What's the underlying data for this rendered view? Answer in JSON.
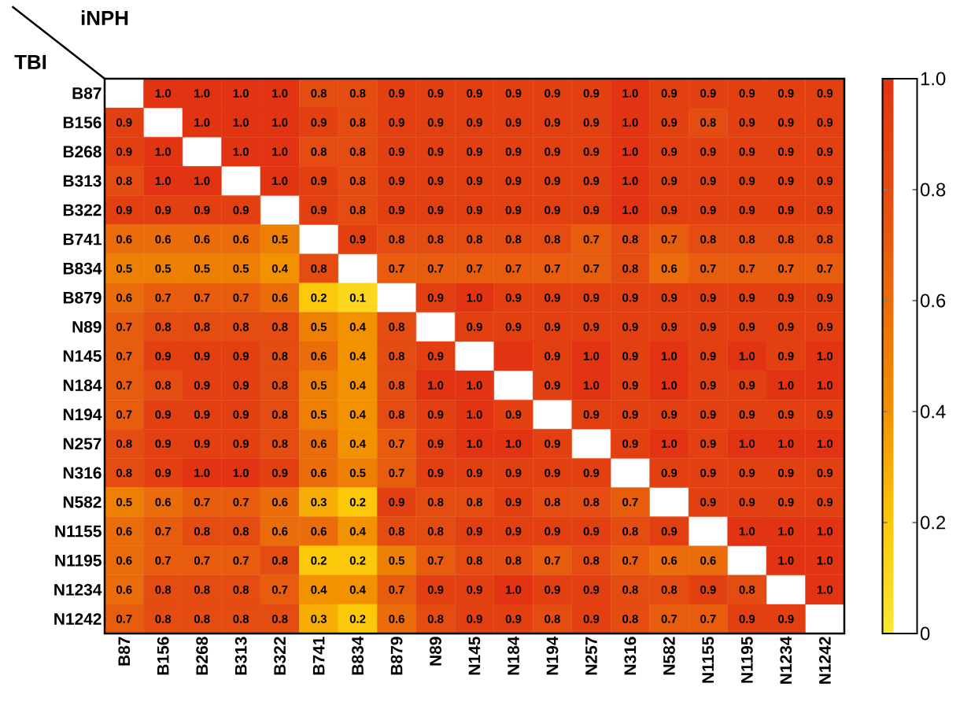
{
  "chart_data": {
    "type": "heatmap",
    "xlabel": "iNPH",
    "ylabel": "TBI",
    "categories": [
      "B87",
      "B156",
      "B268",
      "B313",
      "B322",
      "B741",
      "B834",
      "B879",
      "N89",
      "N145",
      "N184",
      "N194",
      "N257",
      "N316",
      "N582",
      "N1155",
      "N1195",
      "N1234",
      "N1242"
    ],
    "y_categories": [
      "B87",
      "B156",
      "B268",
      "B313",
      "B322",
      "B741",
      "B834",
      "B879",
      "N89",
      "N145",
      "N184",
      "N194",
      "N257",
      "N316",
      "N582",
      "N1155",
      "N1195",
      "N1234",
      "N1242"
    ],
    "cells": [
      [
        null,
        1.0,
        1.0,
        1.0,
        1.0,
        0.8,
        0.8,
        0.9,
        0.9,
        0.9,
        0.9,
        0.9,
        0.9,
        1.0,
        0.9,
        0.9,
        0.9,
        0.9,
        0.9
      ],
      [
        0.9,
        null,
        1.0,
        1.0,
        1.0,
        0.9,
        0.8,
        0.9,
        0.9,
        0.9,
        0.9,
        0.9,
        0.9,
        1.0,
        0.9,
        0.8,
        0.9,
        0.9,
        0.9
      ],
      [
        0.9,
        1.0,
        null,
        1.0,
        1.0,
        0.8,
        0.8,
        0.9,
        0.9,
        0.9,
        0.9,
        0.9,
        0.9,
        1.0,
        0.9,
        0.9,
        0.9,
        0.9,
        0.9
      ],
      [
        0.8,
        1.0,
        1.0,
        null,
        1.0,
        0.9,
        0.8,
        0.9,
        0.9,
        0.9,
        0.9,
        0.9,
        0.9,
        1.0,
        0.9,
        0.9,
        0.9,
        0.9,
        0.9
      ],
      [
        0.9,
        0.9,
        0.9,
        0.9,
        null,
        0.9,
        0.8,
        0.9,
        0.9,
        0.9,
        0.9,
        0.9,
        0.9,
        1.0,
        0.9,
        0.9,
        0.9,
        0.9,
        0.9
      ],
      [
        0.6,
        0.6,
        0.6,
        0.6,
        0.5,
        null,
        0.9,
        0.8,
        0.8,
        0.8,
        0.8,
        0.8,
        0.7,
        0.8,
        0.7,
        0.8,
        0.8,
        0.8,
        0.8
      ],
      [
        0.5,
        0.5,
        0.5,
        0.5,
        0.4,
        0.8,
        null,
        0.7,
        0.7,
        0.7,
        0.7,
        0.7,
        0.7,
        0.8,
        0.6,
        0.7,
        0.7,
        0.7,
        0.7
      ],
      [
        0.6,
        0.7,
        0.7,
        0.7,
        0.6,
        0.2,
        0.1,
        null,
        0.9,
        1.0,
        0.9,
        0.9,
        0.9,
        0.9,
        0.9,
        0.9,
        0.9,
        0.9,
        0.9
      ],
      [
        0.7,
        0.8,
        0.8,
        0.8,
        0.8,
        0.5,
        0.4,
        0.8,
        null,
        0.9,
        0.9,
        0.9,
        0.9,
        0.9,
        0.9,
        0.9,
        0.9,
        0.9,
        0.9
      ],
      [
        0.7,
        0.9,
        0.9,
        0.9,
        0.8,
        0.6,
        0.4,
        0.8,
        0.9,
        null,
        1.0,
        0.9,
        1.0,
        0.9,
        1.0,
        0.9,
        1.0,
        0.9,
        1.0
      ],
      [
        0.7,
        0.8,
        0.9,
        0.9,
        0.8,
        0.5,
        0.4,
        0.8,
        1.0,
        1.0,
        null,
        0.9,
        1.0,
        0.9,
        1.0,
        0.9,
        0.9,
        1.0,
        1.0
      ],
      [
        0.7,
        0.9,
        0.9,
        0.9,
        0.8,
        0.5,
        0.4,
        0.8,
        0.9,
        1.0,
        0.9,
        null,
        0.9,
        0.9,
        0.9,
        0.9,
        0.9,
        0.9,
        0.9
      ],
      [
        0.8,
        0.9,
        0.9,
        0.9,
        0.8,
        0.6,
        0.4,
        0.7,
        0.9,
        1.0,
        1.0,
        0.9,
        null,
        0.9,
        1.0,
        0.9,
        1.0,
        1.0,
        1.0
      ],
      [
        0.8,
        0.9,
        1.0,
        1.0,
        0.9,
        0.6,
        0.5,
        0.7,
        0.9,
        0.9,
        0.9,
        0.9,
        0.9,
        null,
        0.9,
        0.9,
        0.9,
        0.9,
        0.9
      ],
      [
        0.5,
        0.6,
        0.7,
        0.7,
        0.6,
        0.3,
        0.2,
        0.9,
        0.8,
        0.8,
        0.9,
        0.8,
        0.8,
        0.7,
        null,
        0.9,
        0.9,
        0.9,
        0.9
      ],
      [
        0.6,
        0.7,
        0.8,
        0.8,
        0.6,
        0.6,
        0.4,
        0.8,
        0.8,
        0.9,
        0.9,
        0.9,
        0.9,
        0.8,
        0.9,
        null,
        1.0,
        1.0,
        1.0
      ],
      [
        0.6,
        0.7,
        0.7,
        0.7,
        0.8,
        0.2,
        0.2,
        0.5,
        0.7,
        0.8,
        0.8,
        0.7,
        0.8,
        0.7,
        0.6,
        0.6,
        null,
        1.0,
        1.0
      ],
      [
        0.6,
        0.8,
        0.8,
        0.8,
        0.7,
        0.4,
        0.4,
        0.7,
        0.9,
        0.9,
        1.0,
        0.9,
        0.9,
        0.8,
        0.8,
        0.9,
        0.8,
        null,
        1.0
      ],
      [
        0.7,
        0.8,
        0.8,
        0.8,
        0.8,
        0.3,
        0.2,
        0.6,
        0.8,
        0.9,
        0.9,
        0.8,
        0.9,
        0.8,
        0.7,
        0.7,
        0.9,
        0.9,
        null
      ]
    ],
    "cell_labels": [
      [
        null,
        "1.0",
        "1.0",
        "1.0",
        "1.0",
        "0.8",
        "0.8",
        "0.9",
        "0.9",
        "0.9",
        "0.9",
        "0.9",
        "0.9",
        "1.0",
        "0.9",
        "0.9",
        "0.9",
        "0.9",
        "0.9"
      ],
      [
        "0.9",
        null,
        "1.0",
        "1.0",
        "1.0",
        "0.9",
        "0.8",
        "0.9",
        "0.9",
        "0.9",
        "0.9",
        "0.9",
        "0.9",
        "1.0",
        "0.9",
        "0.8",
        "0.9",
        "0.9",
        "0.9"
      ],
      [
        "0.9",
        "1.0",
        null,
        "1.0",
        "1.0",
        "0.8",
        "0.8",
        "0.9",
        "0.9",
        "0.9",
        "0.9",
        "0.9",
        "0.9",
        "1.0",
        "0.9",
        "0.9",
        "0.9",
        "0.9",
        "0.9"
      ],
      [
        "0.8",
        "1.0",
        "1.0",
        null,
        "1.0",
        "0.9",
        "0.8",
        "0.9",
        "0.9",
        "0.9",
        "0.9",
        "0.9",
        "0.9",
        "1.0",
        "0.9",
        "0.9",
        "0.9",
        "0.9",
        "0.9"
      ],
      [
        "0.9",
        "0.9",
        "0.9",
        "0.9",
        null,
        "0.9",
        "0.8",
        "0.9",
        "0.9",
        "0.9",
        "0.9",
        "0.9",
        "0.9",
        "1.0",
        "0.9",
        "0.9",
        "0.9",
        "0.9",
        "0.9"
      ],
      [
        "0.6",
        "0.6",
        "0.6",
        "0.6",
        "0.5",
        null,
        "0.9",
        "0.8",
        "0.8",
        "0.8",
        "0.8",
        "0.8",
        "0.7",
        "0.8",
        "0.7",
        "0.8",
        "0.8",
        "0.8",
        "0.8"
      ],
      [
        "0.5",
        "0.5",
        "0.5",
        "0.5",
        "0.4",
        "0.8",
        null,
        "0.7",
        "0.7",
        "0.7",
        "0.7",
        "0.7",
        "0.7",
        "0.8",
        "0.6",
        "0.7",
        "0.7",
        "0.7",
        "0.7"
      ],
      [
        "0.6",
        "0.7",
        "0.7",
        "0.7",
        "0.6",
        "0.2",
        "0.1",
        null,
        "0.9",
        "1.0",
        "0.9",
        "0.9",
        "0.9",
        "0.9",
        "0.9",
        "0.9",
        "0.9",
        "0.9",
        "0.9"
      ],
      [
        "0.7",
        "0.8",
        "0.8",
        "0.8",
        "0.8",
        "0.5",
        "0.4",
        "0.8",
        null,
        "0.9",
        "0.9",
        "0.9",
        "0.9",
        "0.9",
        "0.9",
        "0.9",
        "0.9",
        "0.9",
        "0.9"
      ],
      [
        "0.7",
        "0.9",
        "0.9",
        "0.9",
        "0.8",
        "0.6",
        "0.4",
        "0.8",
        "0.9",
        null,
        null,
        "0.9",
        "1.0",
        "0.9",
        "1.0",
        "0.9",
        "1.0",
        "0.9",
        "1.0"
      ],
      [
        "0.7",
        "0.8",
        "0.9",
        "0.9",
        "0.8",
        "0.5",
        "0.4",
        "0.8",
        "1.0",
        "1.0",
        null,
        "0.9",
        "1.0",
        "0.9",
        "1.0",
        "0.9",
        "0.9",
        "1.0",
        "1.0"
      ],
      [
        "0.7",
        "0.9",
        "0.9",
        "0.9",
        "0.8",
        "0.5",
        "0.4",
        "0.8",
        "0.9",
        "1.0",
        "0.9",
        null,
        "0.9",
        "0.9",
        "0.9",
        "0.9",
        "0.9",
        "0.9",
        "0.9"
      ],
      [
        "0.8",
        "0.9",
        "0.9",
        "0.9",
        "0.8",
        "0.6",
        "0.4",
        "0.7",
        "0.9",
        "1.0",
        "1.0",
        "0.9",
        null,
        "0.9",
        "1.0",
        "0.9",
        "1.0",
        "1.0",
        "1.0"
      ],
      [
        "0.8",
        "0.9",
        "1.0",
        "1.0",
        "0.9",
        "0.6",
        "0.5",
        "0.7",
        "0.9",
        "0.9",
        "0.9",
        "0.9",
        "0.9",
        null,
        "0.9",
        "0.9",
        "0.9",
        "0.9",
        "0.9"
      ],
      [
        "0.5",
        "0.6",
        "0.7",
        "0.7",
        "0.6",
        "0.3",
        "0.2",
        "0.9",
        "0.8",
        "0.8",
        "0.9",
        "0.8",
        "0.8",
        "0.7",
        null,
        "0.9",
        "0.9",
        "0.9",
        "0.9"
      ],
      [
        "0.6",
        "0.7",
        "0.8",
        "0.8",
        "0.6",
        "0.6",
        "0.4",
        "0.8",
        "0.8",
        "0.9",
        "0.9",
        "0.9",
        "0.9",
        "0.8",
        "0.9",
        null,
        "1.0",
        "1.0",
        "1.0"
      ],
      [
        "0.6",
        "0.7",
        "0.7",
        "0.7",
        "0.8",
        "0.2",
        "0.2",
        "0.5",
        "0.7",
        "0.8",
        "0.8",
        "0.7",
        "0.8",
        "0.7",
        "0.6",
        "0.6",
        null,
        "1.0",
        "1.0"
      ],
      [
        "0.6",
        "0.8",
        "0.8",
        "0.8",
        "0.7",
        "0.4",
        "0.4",
        "0.7",
        "0.9",
        "0.9",
        "1.0",
        "0.9",
        "0.9",
        "0.8",
        "0.8",
        "0.9",
        "0.8",
        null,
        "1.0"
      ],
      [
        "0.7",
        "0.8",
        "0.8",
        "0.8",
        "0.8",
        "0.3",
        "0.2",
        "0.6",
        "0.8",
        "0.9",
        "0.9",
        "0.8",
        "0.9",
        "0.8",
        "0.7",
        "0.7",
        "0.9",
        "0.9",
        null
      ]
    ],
    "clim": [
      0,
      1
    ],
    "cticks": [
      0,
      0.2,
      0.4,
      0.6,
      0.8,
      {
        "value": 1,
        "label": "1.0"
      }
    ]
  }
}
